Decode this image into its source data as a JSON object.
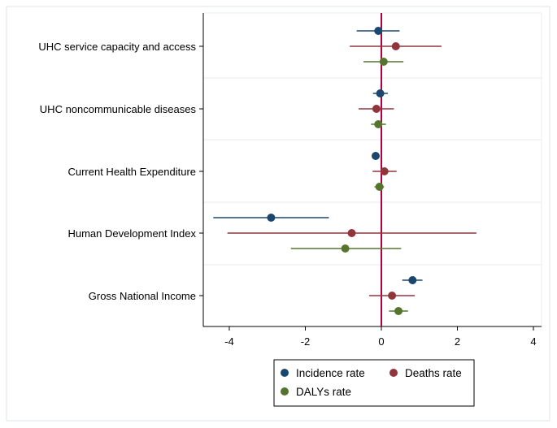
{
  "chart_data": {
    "type": "scatter",
    "subtype": "forest-plot-with-error-bars",
    "orientation": "horizontal",
    "title": "",
    "xlabel": "",
    "ylabel": "",
    "xlim": [
      -4.6,
      4.2
    ],
    "xticks": [
      -4,
      -2,
      0,
      2,
      4
    ],
    "reference_line_x": 0,
    "grid": "horizontal lines between groups",
    "legend_position": "bottom",
    "categories": [
      "UHC service capacity and access",
      "UHC noncommunicable diseases",
      "Current Health Expenditure",
      "Human Development Index",
      "Gross National Income"
    ],
    "series": [
      {
        "name": "Incidence rate",
        "color": "#1a476f",
        "points": [
          {
            "estimate": -0.08,
            "low": -0.65,
            "high": 0.48
          },
          {
            "estimate": -0.03,
            "low": -0.22,
            "high": 0.17
          },
          {
            "estimate": -0.15,
            "low": -0.25,
            "high": -0.05
          },
          {
            "estimate": -2.9,
            "low": -4.42,
            "high": -1.38
          },
          {
            "estimate": 0.82,
            "low": 0.55,
            "high": 1.08
          }
        ]
      },
      {
        "name": "Deaths rate",
        "color": "#90353b",
        "points": [
          {
            "estimate": 0.38,
            "low": -0.83,
            "high": 1.58
          },
          {
            "estimate": -0.13,
            "low": -0.6,
            "high": 0.33
          },
          {
            "estimate": 0.08,
            "low": -0.23,
            "high": 0.4
          },
          {
            "estimate": -0.78,
            "low": -4.05,
            "high": 2.5
          },
          {
            "estimate": 0.28,
            "low": -0.32,
            "high": 0.88
          }
        ]
      },
      {
        "name": "DALYs rate",
        "color": "#55752f",
        "points": [
          {
            "estimate": 0.06,
            "low": -0.47,
            "high": 0.58
          },
          {
            "estimate": -0.08,
            "low": -0.27,
            "high": 0.12
          },
          {
            "estimate": -0.05,
            "low": -0.18,
            "high": 0.07
          },
          {
            "estimate": -0.95,
            "low": -2.38,
            "high": 0.52
          },
          {
            "estimate": 0.45,
            "low": 0.2,
            "high": 0.7
          }
        ]
      }
    ]
  },
  "colors": {
    "reference_line": "#b00040",
    "grid": "#e9eef1",
    "axis": "#000000",
    "frame": "#dfe4e8"
  }
}
